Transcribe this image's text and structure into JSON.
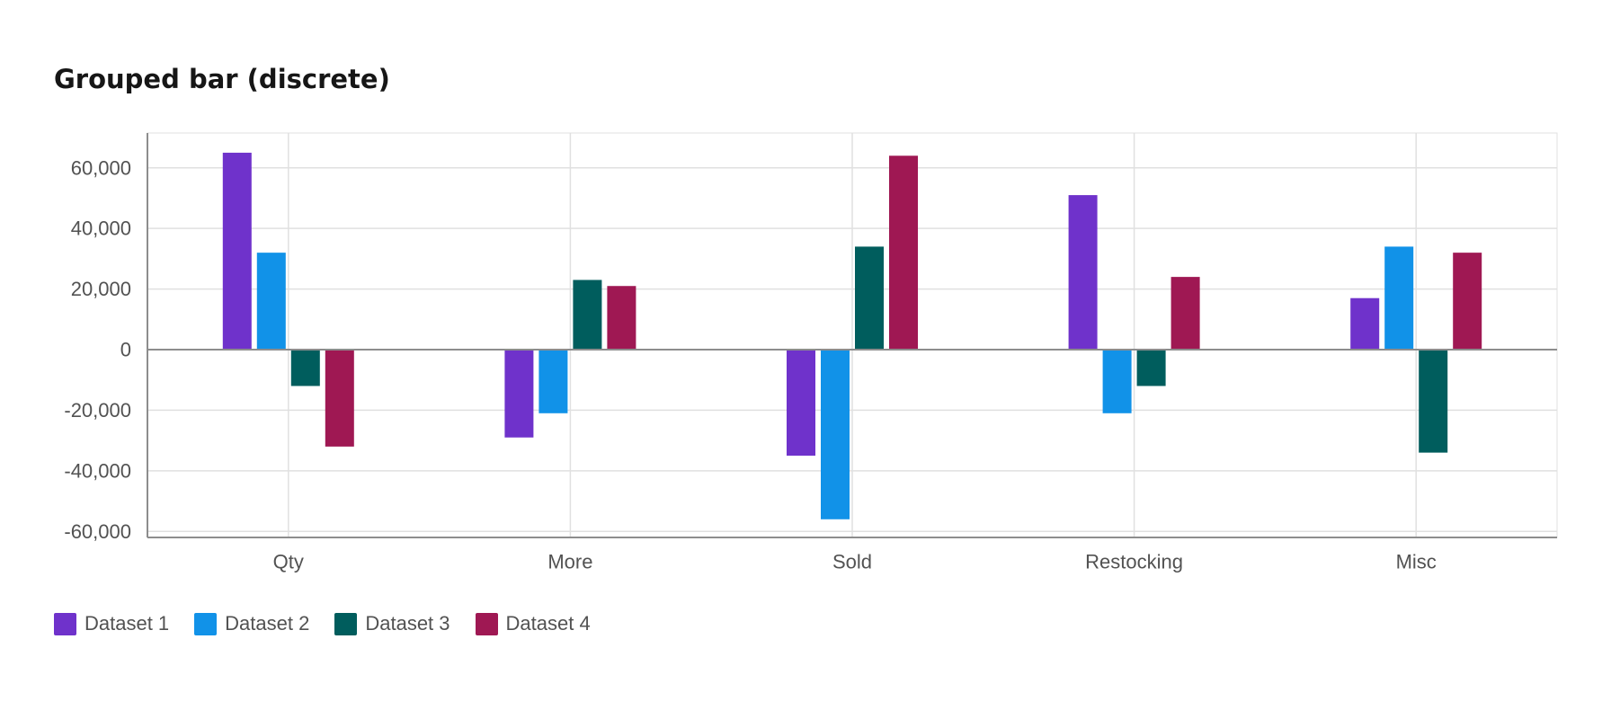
{
  "chart_data": {
    "type": "bar",
    "title": "Grouped bar (discrete)",
    "categories": [
      "Qty",
      "More",
      "Sold",
      "Restocking",
      "Misc"
    ],
    "series": [
      {
        "name": "Dataset 1",
        "color": "#6f32cb",
        "values": [
          65000,
          -29000,
          -35000,
          51000,
          17000
        ]
      },
      {
        "name": "Dataset 2",
        "color": "#1192e8",
        "values": [
          32000,
          -21000,
          -56000,
          -21000,
          34000
        ]
      },
      {
        "name": "Dataset 3",
        "color": "#005d5d",
        "values": [
          -12000,
          23000,
          34000,
          -12000,
          -34000
        ]
      },
      {
        "name": "Dataset 4",
        "color": "#9f1853",
        "values": [
          -32000,
          21000,
          64000,
          24000,
          32000
        ]
      }
    ],
    "yticks": [
      60000,
      40000,
      20000,
      0,
      -20000,
      -40000,
      -60000
    ],
    "ytick_labels": [
      "60,000",
      "40,000",
      "20,000",
      "0",
      "-20,000",
      "-40,000",
      "-60,000"
    ],
    "ylim": [
      -62000,
      71500
    ],
    "xlabel": "",
    "ylabel": "",
    "grid": true,
    "legend_position": "bottom-left"
  }
}
